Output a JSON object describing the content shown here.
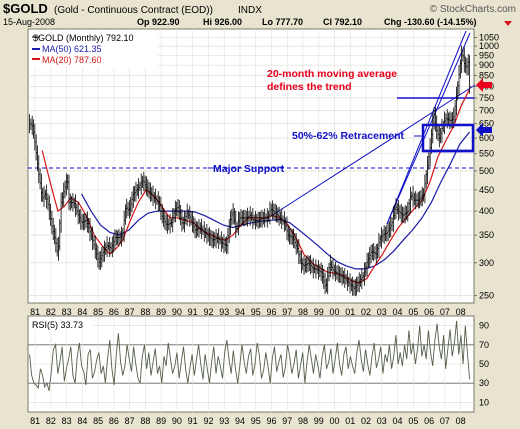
{
  "header": {
    "symbol": "$GOLD",
    "name": "(Gold - Continuous Contract (EOD))",
    "exchange": "INDX",
    "credit": "© StockCharts.com",
    "date": "15-Aug-2008",
    "quote": {
      "open": "Op 922.90",
      "high": "Hi 926.00",
      "low": "Lo 777.70",
      "close": "Cl 792.10",
      "change": "Chg -130.60 (-14.15%)"
    }
  },
  "legend": {
    "price": "$GOLD (Monthly) 792.10",
    "ma50": "MA(50) 621.35",
    "ma20": "MA(20) 787.60"
  },
  "annotations": {
    "trend": [
      "20-month moving average",
      "defines the trend"
    ],
    "retracement": "50%-62% Retracement",
    "support": "Major Support"
  },
  "rsi_label": "RSI(5) 33.73",
  "colors": {
    "price": "#000000",
    "ma50": "#1a1aa8",
    "ma20": "#d41616",
    "annotation_red": "#e8001c",
    "annotation_blue": "#1010c8",
    "rsi": "#55604c",
    "background": "#e8e4cf"
  },
  "chart_data": [
    {
      "type": "line",
      "title": "$GOLD (Gold - Continuous Contract (EOD))",
      "ylim": [
        240,
        1100
      ],
      "y_scale": "log",
      "yticks": [
        250,
        300,
        350,
        400,
        450,
        500,
        550,
        600,
        650,
        700,
        750,
        800,
        850,
        900,
        950,
        1000,
        1050
      ],
      "year_labels": [
        "81",
        "82",
        "83",
        "84",
        "85",
        "86",
        "87",
        "88",
        "89",
        "90",
        "91",
        "92",
        "93",
        "94",
        "95",
        "96",
        "97",
        "98",
        "99",
        "00",
        "01",
        "02",
        "03",
        "04",
        "05",
        "06",
        "07",
        "08"
      ],
      "xlim": [
        1980.6,
        2008.9
      ],
      "price_monthly": [
        [
          1980.7,
          650
        ],
        [
          1980.9,
          640
        ],
        [
          1981.0,
          600
        ],
        [
          1981.25,
          500
        ],
        [
          1981.5,
          430
        ],
        [
          1981.7,
          440
        ],
        [
          1981.9,
          410
        ],
        [
          1982.1,
          370
        ],
        [
          1982.4,
          330
        ],
        [
          1982.5,
          310
        ],
        [
          1982.7,
          420
        ],
        [
          1982.9,
          450
        ],
        [
          1983.1,
          480
        ],
        [
          1983.2,
          420
        ],
        [
          1983.5,
          420
        ],
        [
          1983.8,
          390
        ],
        [
          1984.0,
          375
        ],
        [
          1984.3,
          380
        ],
        [
          1984.6,
          350
        ],
        [
          1984.9,
          320
        ],
        [
          1985.1,
          300
        ],
        [
          1985.4,
          320
        ],
        [
          1985.6,
          330
        ],
        [
          1985.9,
          325
        ],
        [
          1986.1,
          345
        ],
        [
          1986.4,
          345
        ],
        [
          1986.6,
          350
        ],
        [
          1986.8,
          410
        ],
        [
          1987.0,
          400
        ],
        [
          1987.3,
          440
        ],
        [
          1987.6,
          455
        ],
        [
          1987.9,
          475
        ],
        [
          1988.0,
          465
        ],
        [
          1988.3,
          445
        ],
        [
          1988.6,
          430
        ],
        [
          1988.9,
          420
        ],
        [
          1989.1,
          390
        ],
        [
          1989.4,
          370
        ],
        [
          1989.7,
          375
        ],
        [
          1989.9,
          400
        ],
        [
          1990.1,
          410
        ],
        [
          1990.4,
          370
        ],
        [
          1990.7,
          395
        ],
        [
          1990.9,
          385
        ],
        [
          1991.2,
          360
        ],
        [
          1991.5,
          365
        ],
        [
          1991.8,
          355
        ],
        [
          1992.0,
          350
        ],
        [
          1992.3,
          340
        ],
        [
          1992.6,
          345
        ],
        [
          1992.9,
          335
        ],
        [
          1993.2,
          330
        ],
        [
          1993.4,
          375
        ],
        [
          1993.6,
          400
        ],
        [
          1993.8,
          360
        ],
        [
          1994.0,
          385
        ],
        [
          1994.4,
          385
        ],
        [
          1994.7,
          390
        ],
        [
          1994.9,
          380
        ],
        [
          1995.2,
          380
        ],
        [
          1995.5,
          385
        ],
        [
          1995.8,
          385
        ],
        [
          1996.0,
          405
        ],
        [
          1996.3,
          395
        ],
        [
          1996.6,
          385
        ],
        [
          1996.9,
          375
        ],
        [
          1997.1,
          350
        ],
        [
          1997.4,
          345
        ],
        [
          1997.7,
          325
        ],
        [
          1997.9,
          300
        ],
        [
          1998.1,
          295
        ],
        [
          1998.4,
          300
        ],
        [
          1998.7,
          290
        ],
        [
          1998.9,
          290
        ],
        [
          1999.2,
          285
        ],
        [
          1999.5,
          260
        ],
        [
          1999.75,
          300
        ],
        [
          1999.9,
          290
        ],
        [
          2000.1,
          285
        ],
        [
          2000.4,
          280
        ],
        [
          2000.7,
          275
        ],
        [
          2000.9,
          270
        ],
        [
          2001.1,
          265
        ],
        [
          2001.3,
          260
        ],
        [
          2001.6,
          270
        ],
        [
          2001.9,
          280
        ],
        [
          2002.1,
          300
        ],
        [
          2002.4,
          320
        ],
        [
          2002.7,
          315
        ],
        [
          2002.9,
          340
        ],
        [
          2003.1,
          350
        ],
        [
          2003.4,
          355
        ],
        [
          2003.7,
          375
        ],
        [
          2003.9,
          410
        ],
        [
          2004.1,
          400
        ],
        [
          2004.4,
          390
        ],
        [
          2004.7,
          400
        ],
        [
          2004.9,
          440
        ],
        [
          2005.1,
          425
        ],
        [
          2005.4,
          425
        ],
        [
          2005.7,
          440
        ],
        [
          2005.9,
          500
        ],
        [
          2006.1,
          560
        ],
        [
          2006.35,
          690
        ],
        [
          2006.5,
          630
        ],
        [
          2006.7,
          600
        ],
        [
          2006.9,
          640
        ],
        [
          2007.1,
          670
        ],
        [
          2007.4,
          660
        ],
        [
          2007.6,
          670
        ],
        [
          2007.75,
          740
        ],
        [
          2007.9,
          820
        ],
        [
          2008.0,
          890
        ],
        [
          2008.15,
          970
        ],
        [
          2008.3,
          900
        ],
        [
          2008.45,
          890
        ],
        [
          2008.55,
          920
        ],
        [
          2008.62,
          792
        ]
      ],
      "ma20": [
        [
          1981.5,
          560
        ],
        [
          1982.0,
          470
        ],
        [
          1982.5,
          400
        ],
        [
          1982.9,
          410
        ],
        [
          1983.3,
          430
        ],
        [
          1983.8,
          420
        ],
        [
          1984.3,
          390
        ],
        [
          1984.8,
          350
        ],
        [
          1985.3,
          330
        ],
        [
          1985.8,
          315
        ],
        [
          1986.2,
          325
        ],
        [
          1986.6,
          340
        ],
        [
          1987.1,
          380
        ],
        [
          1987.6,
          420
        ],
        [
          1988.1,
          450
        ],
        [
          1988.6,
          435
        ],
        [
          1989.1,
          410
        ],
        [
          1989.6,
          385
        ],
        [
          1990.1,
          385
        ],
        [
          1990.6,
          380
        ],
        [
          1991.1,
          375
        ],
        [
          1991.6,
          360
        ],
        [
          1992.1,
          352
        ],
        [
          1992.6,
          345
        ],
        [
          1993.1,
          340
        ],
        [
          1993.6,
          350
        ],
        [
          1994.1,
          370
        ],
        [
          1994.6,
          385
        ],
        [
          1995.1,
          385
        ],
        [
          1995.6,
          385
        ],
        [
          1996.1,
          390
        ],
        [
          1996.6,
          385
        ],
        [
          1997.1,
          370
        ],
        [
          1997.6,
          345
        ],
        [
          1998.1,
          315
        ],
        [
          1998.6,
          300
        ],
        [
          1999.1,
          292
        ],
        [
          1999.6,
          285
        ],
        [
          2000.1,
          283
        ],
        [
          2000.6,
          280
        ],
        [
          2001.1,
          272
        ],
        [
          2001.6,
          268
        ],
        [
          2002.1,
          275
        ],
        [
          2002.6,
          295
        ],
        [
          2003.1,
          315
        ],
        [
          2003.6,
          340
        ],
        [
          2004.1,
          365
        ],
        [
          2004.6,
          385
        ],
        [
          2005.1,
          405
        ],
        [
          2005.6,
          425
        ],
        [
          2006.1,
          470
        ],
        [
          2006.6,
          540
        ],
        [
          2007.1,
          590
        ],
        [
          2007.6,
          640
        ],
        [
          2008.1,
          720
        ],
        [
          2008.62,
          787
        ]
      ],
      "ma50": [
        [
          1984.0,
          440
        ],
        [
          1984.6,
          400
        ],
        [
          1985.2,
          370
        ],
        [
          1985.8,
          355
        ],
        [
          1986.4,
          350
        ],
        [
          1987.0,
          360
        ],
        [
          1987.6,
          380
        ],
        [
          1988.2,
          395
        ],
        [
          1988.8,
          400
        ],
        [
          1989.4,
          400
        ],
        [
          1990.0,
          400
        ],
        [
          1990.6,
          400
        ],
        [
          1991.2,
          398
        ],
        [
          1991.8,
          390
        ],
        [
          1992.4,
          380
        ],
        [
          1993.0,
          370
        ],
        [
          1993.6,
          365
        ],
        [
          1994.2,
          370
        ],
        [
          1994.8,
          375
        ],
        [
          1995.4,
          378
        ],
        [
          1996.0,
          380
        ],
        [
          1996.6,
          382
        ],
        [
          1997.2,
          375
        ],
        [
          1997.8,
          360
        ],
        [
          1998.4,
          345
        ],
        [
          1999.0,
          330
        ],
        [
          1999.6,
          315
        ],
        [
          2000.2,
          302
        ],
        [
          2000.8,
          295
        ],
        [
          2001.4,
          290
        ],
        [
          2002.0,
          290
        ],
        [
          2002.6,
          295
        ],
        [
          2003.2,
          305
        ],
        [
          2003.8,
          320
        ],
        [
          2004.4,
          340
        ],
        [
          2005.0,
          360
        ],
        [
          2005.6,
          385
        ],
        [
          2006.2,
          420
        ],
        [
          2006.8,
          470
        ],
        [
          2007.4,
          520
        ],
        [
          2008.0,
          580
        ],
        [
          2008.62,
          621
        ]
      ]
    },
    {
      "type": "line",
      "title": "RSI(5) 33.73",
      "ylim": [
        0,
        100
      ],
      "yticks": [
        10,
        30,
        50,
        70,
        90
      ],
      "xlim": [
        1980.6,
        2008.9
      ],
      "values": [
        60,
        38,
        30,
        28,
        25,
        45,
        38,
        26,
        30,
        22,
        42,
        65,
        70,
        40,
        52,
        68,
        32,
        45,
        55,
        68,
        38,
        30,
        58,
        72,
        48,
        42,
        28,
        60,
        65,
        35,
        42,
        55,
        62,
        40,
        48,
        30,
        56,
        75,
        45,
        28,
        60,
        82,
        52,
        38,
        48,
        70,
        55,
        42,
        68,
        50,
        35,
        30,
        58,
        70,
        45,
        62,
        38,
        52,
        66,
        40,
        48,
        30,
        58,
        48,
        72,
        55,
        40,
        48,
        62,
        35,
        52,
        68,
        45,
        30,
        46,
        60,
        38,
        55,
        70,
        50,
        34,
        60,
        45,
        30,
        52,
        68,
        40,
        58,
        48,
        35,
        62,
        75,
        55,
        40,
        64,
        45,
        30,
        48,
        70,
        52,
        40,
        58,
        66,
        38,
        50,
        72,
        60,
        35,
        44,
        62,
        48,
        30,
        56,
        68,
        42,
        52,
        60,
        36,
        46,
        70,
        58,
        40,
        50,
        65,
        35,
        48,
        62,
        30,
        52,
        70,
        55,
        40,
        60,
        48,
        35,
        58,
        70,
        45,
        52,
        66,
        40,
        55,
        72,
        50,
        38,
        60,
        68,
        45,
        58,
        48,
        40,
        62,
        75,
        55,
        42,
        65,
        50,
        38,
        58,
        72,
        46,
        55,
        68,
        40,
        60,
        52,
        70,
        45,
        58,
        80,
        50,
        62,
        48,
        70,
        55,
        85,
        60,
        72,
        50,
        66,
        90,
        58,
        70,
        55,
        85,
        62,
        48,
        75,
        92,
        68,
        55,
        80,
        45,
        66,
        86,
        58,
        72,
        95,
        60,
        80,
        50,
        90,
        62,
        34
      ]
    }
  ]
}
